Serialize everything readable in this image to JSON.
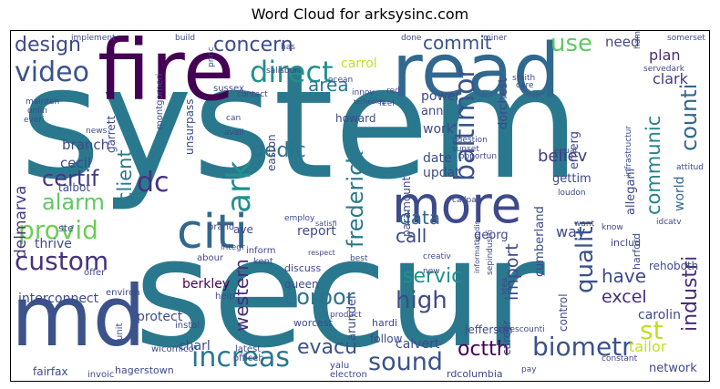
{
  "chart_data": {
    "type": "wordcloud",
    "title": "Word Cloud for arksysinc.com",
    "palette": "viridis",
    "words": [
      {
        "text": "system",
        "color": "#2a788e"
      },
      {
        "text": "secur",
        "color": "#2a788e"
      },
      {
        "text": "fire",
        "color": "#440154"
      },
      {
        "text": "read",
        "color": "#31688e"
      },
      {
        "text": "md",
        "color": "#3b528b"
      },
      {
        "text": "more",
        "color": "#3e4a89"
      },
      {
        "text": "citi",
        "color": "#31688e"
      },
      {
        "text": "ark",
        "color": "#21918c"
      },
      {
        "text": "video",
        "color": "#3b528b"
      },
      {
        "text": "direct",
        "color": "#21918c"
      },
      {
        "text": "design",
        "color": "#3e4a89"
      },
      {
        "text": "provid",
        "color": "#6ece58"
      },
      {
        "text": "alarm",
        "color": "#5ec962"
      },
      {
        "text": "custom",
        "color": "#46327e"
      },
      {
        "text": "certif",
        "color": "#443983"
      },
      {
        "text": "dc",
        "color": "#46327e"
      },
      {
        "text": "concern",
        "color": "#3e4a89"
      },
      {
        "text": "area",
        "color": "#2a788e"
      },
      {
        "text": "commit",
        "color": "#3b528b"
      },
      {
        "text": "use",
        "color": "#5ec962"
      },
      {
        "text": "need",
        "color": "#3e4a89"
      },
      {
        "text": "plan",
        "color": "#472d7b"
      },
      {
        "text": "clark",
        "color": "#443983"
      },
      {
        "text": "counti",
        "color": "#31688e"
      },
      {
        "text": "baltimor",
        "color": "#3b528b"
      },
      {
        "text": "frederick",
        "color": "#2a788e"
      },
      {
        "text": "dedic",
        "color": "#2c728e"
      },
      {
        "text": "believ",
        "color": "#443983"
      },
      {
        "text": "communic",
        "color": "#26828e"
      },
      {
        "text": "world",
        "color": "#31688e"
      },
      {
        "text": "data",
        "color": "#31688e"
      },
      {
        "text": "call",
        "color": "#3e4a89"
      },
      {
        "text": "way",
        "color": "#3e4a89"
      },
      {
        "text": "delmarva",
        "color": "#443983"
      },
      {
        "text": "client",
        "color": "#2a788e"
      },
      {
        "text": "western",
        "color": "#472d7b"
      },
      {
        "text": "corpor",
        "color": "#2c728e"
      },
      {
        "text": "high",
        "color": "#3e4a89"
      },
      {
        "text": "servic",
        "color": "#21918c"
      },
      {
        "text": "qualiti",
        "color": "#3b528b"
      },
      {
        "text": "industri",
        "color": "#472d7b"
      },
      {
        "text": "st",
        "color": "#c2df23"
      },
      {
        "text": "have",
        "color": "#3e4a89"
      },
      {
        "text": "excel",
        "color": "#472d7b"
      },
      {
        "text": "increas",
        "color": "#2a788e"
      },
      {
        "text": "sound",
        "color": "#3b528b"
      },
      {
        "text": "evacu",
        "color": "#3b528b"
      },
      {
        "text": "biometr",
        "color": "#3b528b"
      },
      {
        "text": "octth",
        "color": "#440154"
      },
      {
        "text": "import",
        "color": "#3e4a89"
      },
      {
        "text": "protect",
        "color": "#3e4a89"
      },
      {
        "text": "interconnect",
        "color": "#3e4a89"
      },
      {
        "text": "thrive",
        "color": "#3e4a89"
      },
      {
        "text": "berkley",
        "color": "#440154"
      },
      {
        "text": "report",
        "color": "#3e4a89"
      },
      {
        "text": "branch",
        "color": "#3e4a89"
      },
      {
        "text": "work",
        "color": "#3e4a89"
      },
      {
        "text": "power",
        "color": "#3e4a89"
      },
      {
        "text": "carrol",
        "color": "#c2df23"
      },
      {
        "text": "ann",
        "color": "#3e4a89"
      },
      {
        "text": "dorchest",
        "color": "#3e4a89"
      },
      {
        "text": "updat",
        "color": "#3e4a89"
      },
      {
        "text": "date",
        "color": "#3e4a89"
      },
      {
        "text": "gettim",
        "color": "#3e4a89"
      },
      {
        "text": "emerg",
        "color": "#3e4a89"
      },
      {
        "text": "allegani",
        "color": "#3e4a89"
      },
      {
        "text": "georg",
        "color": "#3e4a89"
      },
      {
        "text": "arundel",
        "color": "#3e4a89"
      },
      {
        "text": "paramount",
        "color": "#3e4a89"
      },
      {
        "text": "cumberland",
        "color": "#3e4a89"
      },
      {
        "text": "calvert",
        "color": "#3e4a89"
      },
      {
        "text": "carolin",
        "color": "#3e4a89"
      },
      {
        "text": "tailor",
        "color": "#c2df23"
      },
      {
        "text": "network",
        "color": "#3e4a89"
      },
      {
        "text": "fairfax",
        "color": "#3e4a89"
      },
      {
        "text": "charl",
        "color": "#3e4a89"
      },
      {
        "text": "hagerstown",
        "color": "#3e4a89"
      },
      {
        "text": "wicomico",
        "color": "#3e4a89"
      },
      {
        "text": "cecil",
        "color": "#3e4a89"
      },
      {
        "text": "talbot",
        "color": "#3e4a89"
      },
      {
        "text": "garrett",
        "color": "#3e4a89"
      },
      {
        "text": "unsurpass",
        "color": "#3e4a89"
      },
      {
        "text": "montgomeri",
        "color": "#3e4a89"
      },
      {
        "text": "sussex",
        "color": "#3e4a89"
      },
      {
        "text": "easton",
        "color": "#3e4a89"
      },
      {
        "text": "howard",
        "color": "#3e4a89"
      },
      {
        "text": "jefferson",
        "color": "#3e4a89"
      },
      {
        "text": "career",
        "color": "#3e4a89"
      },
      {
        "text": "control",
        "color": "#3e4a89"
      },
      {
        "text": "rehoboth",
        "color": "#3e4a89"
      },
      {
        "text": "harford",
        "color": "#3e4a89"
      },
      {
        "text": "includ",
        "color": "#3e4a89"
      },
      {
        "text": "queen",
        "color": "#3e4a89"
      },
      {
        "text": "discuss",
        "color": "#3e4a89"
      },
      {
        "text": "worcest",
        "color": "#3e4a89"
      },
      {
        "text": "hardi",
        "color": "#3e4a89"
      },
      {
        "text": "follow",
        "color": "#3e4a89"
      },
      {
        "text": "yalu",
        "color": "#3e4a89"
      },
      {
        "text": "electron",
        "color": "#3e4a89"
      },
      {
        "text": "rdcolumbia",
        "color": "#3e4a89"
      },
      {
        "text": "latest",
        "color": "#3e4a89"
      },
      {
        "text": "officeh",
        "color": "#3e4a89"
      },
      {
        "text": "invoic",
        "color": "#3e4a89"
      },
      {
        "text": "unit",
        "color": "#3e4a89"
      },
      {
        "text": "kent",
        "color": "#3e4a89"
      },
      {
        "text": "inform",
        "color": "#3e4a89"
      },
      {
        "text": "ave",
        "color": "#3e4a89"
      },
      {
        "text": "abour",
        "color": "#3e4a89"
      },
      {
        "text": "brand",
        "color": "#3e4a89"
      },
      {
        "text": "ste",
        "color": "#3e4a89"
      },
      {
        "text": "offer",
        "color": "#3e4a89"
      },
      {
        "text": "environ",
        "color": "#3e4a89"
      },
      {
        "text": "help",
        "color": "#3e4a89"
      },
      {
        "text": "instal",
        "color": "#3e4a89"
      },
      {
        "text": "implement",
        "color": "#3e4a89"
      },
      {
        "text": "onlin",
        "color": "#3e4a89"
      },
      {
        "text": "everi",
        "color": "#3e4a89"
      },
      {
        "text": "mainten",
        "color": "#3e4a89"
      },
      {
        "text": "build",
        "color": "#3e4a89"
      },
      {
        "text": "princ",
        "color": "#3e4a89"
      },
      {
        "text": "salisburi",
        "color": "#3e4a89"
      },
      {
        "text": "has",
        "color": "#3e4a89"
      },
      {
        "text": "ocean",
        "color": "#3e4a89"
      },
      {
        "text": "red",
        "color": "#3e4a89"
      },
      {
        "text": "done",
        "color": "#3e4a89"
      },
      {
        "text": "miner",
        "color": "#3e4a89"
      },
      {
        "text": "smith",
        "color": "#3e4a89"
      },
      {
        "text": "question",
        "color": "#3e4a89"
      },
      {
        "text": "sunset",
        "color": "#3e4a89"
      },
      {
        "text": "opportun",
        "color": "#3e4a89"
      },
      {
        "text": "loudon",
        "color": "#3e4a89"
      },
      {
        "text": "callpag",
        "color": "#3e4a89"
      },
      {
        "text": "contact",
        "color": "#3e4a89"
      },
      {
        "text": "can",
        "color": "#3e4a89"
      },
      {
        "text": "avail",
        "color": "#3e4a89"
      },
      {
        "text": "news",
        "color": "#3e4a89"
      },
      {
        "text": "integr",
        "color": "#3e4a89"
      },
      {
        "text": "employ",
        "color": "#3e4a89"
      },
      {
        "text": "creativ",
        "color": "#3e4a89"
      },
      {
        "text": "new",
        "color": "#3e4a89"
      },
      {
        "text": "sepindustri",
        "color": "#3e4a89"
      },
      {
        "text": "idea",
        "color": "#3e4a89"
      },
      {
        "text": "citiescounti",
        "color": "#3e4a89"
      },
      {
        "text": "constant",
        "color": "#3e4a89"
      },
      {
        "text": "equal",
        "color": "#3e4a89"
      },
      {
        "text": "want",
        "color": "#3e4a89"
      },
      {
        "text": "know",
        "color": "#3e4a89"
      },
      {
        "text": "infrastructur",
        "color": "#3e4a89"
      },
      {
        "text": "servedark",
        "color": "#3e4a89"
      },
      {
        "text": "hampshir",
        "color": "#3e4a89"
      },
      {
        "text": "somerset",
        "color": "#3e4a89"
      },
      {
        "text": "idcatv",
        "color": "#3e4a89"
      },
      {
        "text": "attitud",
        "color": "#3e4a89"
      },
      {
        "text": "care",
        "color": "#3e4a89"
      },
      {
        "text": "feel",
        "color": "#3e4a89"
      },
      {
        "text": "innov",
        "color": "#3e4a89"
      },
      {
        "text": "technolog",
        "color": "#3e4a89"
      },
      {
        "text": "satisfi",
        "color": "#3e4a89"
      },
      {
        "text": "pay",
        "color": "#3e4a89"
      },
      {
        "text": "best",
        "color": "#3e4a89"
      },
      {
        "text": "product",
        "color": "#3e4a89"
      },
      {
        "text": "informationdis",
        "color": "#3e4a89"
      },
      {
        "text": "respect",
        "color": "#3e4a89"
      }
    ]
  }
}
